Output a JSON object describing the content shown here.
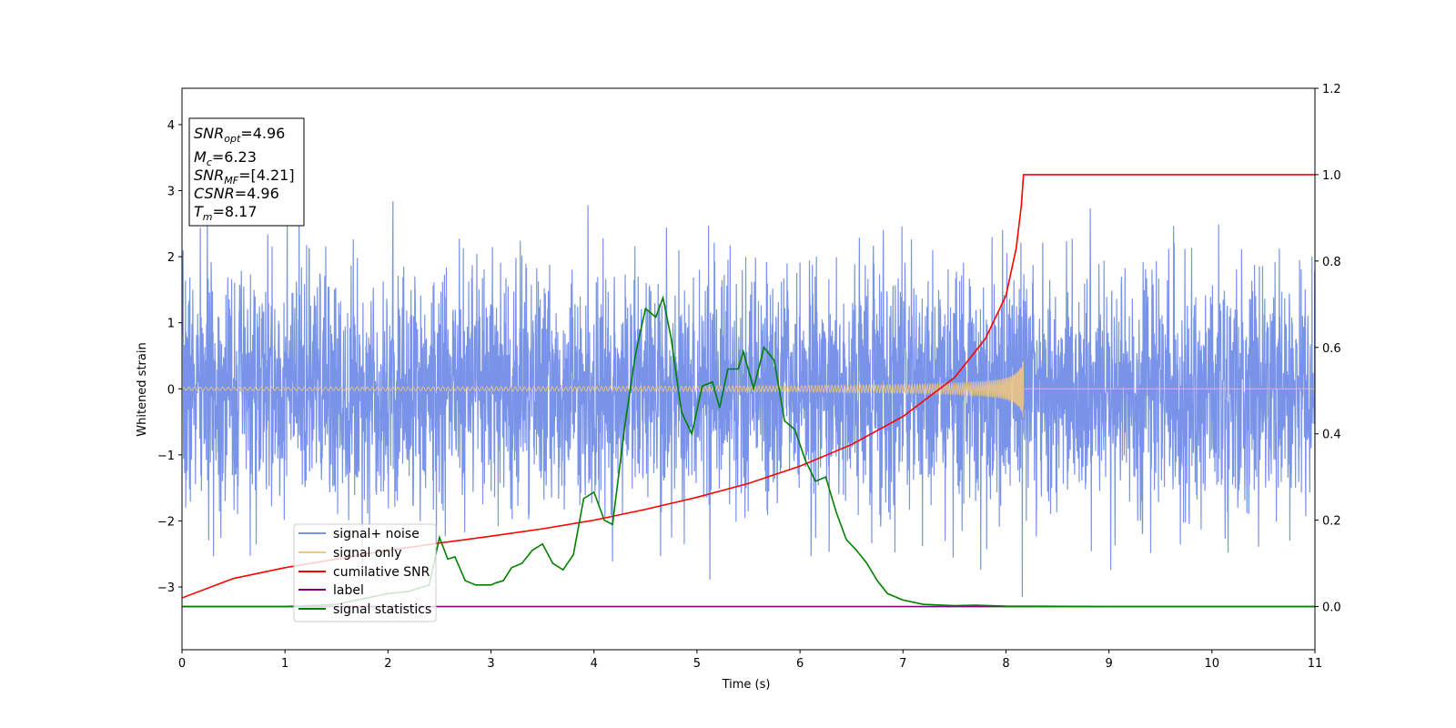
{
  "chart_data": {
    "type": "line",
    "xlabel": "Time (s)",
    "ylabel": "Whitened strain",
    "xlim": [
      0,
      11
    ],
    "ylim_left": [
      -3.95,
      4.55
    ],
    "ylim_right": [
      -0.1,
      1.2
    ],
    "x_ticks": [
      0,
      1,
      2,
      3,
      4,
      5,
      6,
      7,
      8,
      9,
      10,
      11
    ],
    "y_ticks_left": [
      -3,
      -2,
      -1,
      0,
      1,
      2,
      3,
      4
    ],
    "y_ticks_right": [
      0.0,
      0.2,
      0.4,
      0.6,
      0.8,
      1.0,
      1.2
    ],
    "legend_placement": "lower-left",
    "annotation_box": {
      "snr_opt": {
        "sym": "SNR",
        "sub": "opt",
        "value": "=4.96"
      },
      "mc": {
        "sym": "M",
        "sub": "c",
        "value": "=6.23"
      },
      "snr_mf": {
        "sym": "SNR",
        "sub": "MF",
        "value": "=[4.21]"
      },
      "csnr": {
        "sym": "CSNR",
        "sub": "",
        "value": "=4.96"
      },
      "tm": {
        "sym": "T",
        "sub": "m",
        "value": "=8.17"
      }
    },
    "series": [
      {
        "name": "signal+ noise",
        "color": "#7893e8",
        "axis": "left",
        "sigma": 0.9,
        "seed": 7
      },
      {
        "name": "signal only",
        "color": "#f5c77e",
        "axis": "left",
        "merger_time": 8.17,
        "peak_amplitude": 0.55
      },
      {
        "name": "cumilative SNR",
        "color": "#ff0000",
        "axis": "right",
        "points": [
          [
            0,
            0.02
          ],
          [
            0.5,
            0.065
          ],
          [
            1,
            0.09
          ],
          [
            1.5,
            0.11
          ],
          [
            2,
            0.13
          ],
          [
            2.5,
            0.147
          ],
          [
            3,
            0.163
          ],
          [
            3.5,
            0.18
          ],
          [
            4,
            0.2
          ],
          [
            4.5,
            0.225
          ],
          [
            5,
            0.253
          ],
          [
            5.5,
            0.285
          ],
          [
            6,
            0.325
          ],
          [
            6.5,
            0.375
          ],
          [
            7,
            0.44
          ],
          [
            7.5,
            0.53
          ],
          [
            7.8,
            0.62
          ],
          [
            8.0,
            0.72
          ],
          [
            8.1,
            0.83
          ],
          [
            8.15,
            0.93
          ],
          [
            8.17,
            1.0
          ],
          [
            11,
            1.0
          ]
        ]
      },
      {
        "name": "label",
        "color": "#800080",
        "axis": "right",
        "points": [
          [
            0,
            0.0
          ],
          [
            11,
            0.0
          ]
        ]
      },
      {
        "name": "signal statistics",
        "color": "#008000",
        "axis": "right",
        "points": [
          [
            0,
            0.0
          ],
          [
            1,
            0.0
          ],
          [
            1.5,
            0.005
          ],
          [
            2,
            0.03
          ],
          [
            2.2,
            0.035
          ],
          [
            2.4,
            0.05
          ],
          [
            2.5,
            0.16
          ],
          [
            2.58,
            0.11
          ],
          [
            2.65,
            0.115
          ],
          [
            2.75,
            0.06
          ],
          [
            2.85,
            0.05
          ],
          [
            3.0,
            0.05
          ],
          [
            3.05,
            0.055
          ],
          [
            3.12,
            0.06
          ],
          [
            3.2,
            0.09
          ],
          [
            3.3,
            0.1
          ],
          [
            3.4,
            0.13
          ],
          [
            3.5,
            0.145
          ],
          [
            3.6,
            0.1
          ],
          [
            3.7,
            0.085
          ],
          [
            3.8,
            0.12
          ],
          [
            3.9,
            0.25
          ],
          [
            4.0,
            0.265
          ],
          [
            4.1,
            0.2
          ],
          [
            4.18,
            0.19
          ],
          [
            4.3,
            0.42
          ],
          [
            4.4,
            0.58
          ],
          [
            4.5,
            0.69
          ],
          [
            4.6,
            0.67
          ],
          [
            4.67,
            0.715
          ],
          [
            4.75,
            0.62
          ],
          [
            4.85,
            0.45
          ],
          [
            4.95,
            0.4
          ],
          [
            5.05,
            0.51
          ],
          [
            5.15,
            0.52
          ],
          [
            5.22,
            0.46
          ],
          [
            5.3,
            0.55
          ],
          [
            5.4,
            0.55
          ],
          [
            5.45,
            0.59
          ],
          [
            5.55,
            0.505
          ],
          [
            5.65,
            0.6
          ],
          [
            5.75,
            0.57
          ],
          [
            5.85,
            0.43
          ],
          [
            5.95,
            0.41
          ],
          [
            6.05,
            0.34
          ],
          [
            6.15,
            0.29
          ],
          [
            6.25,
            0.3
          ],
          [
            6.35,
            0.22
          ],
          [
            6.45,
            0.155
          ],
          [
            6.55,
            0.13
          ],
          [
            6.65,
            0.1
          ],
          [
            6.75,
            0.06
          ],
          [
            6.85,
            0.03
          ],
          [
            7.0,
            0.015
          ],
          [
            7.2,
            0.005
          ],
          [
            7.5,
            0.002
          ],
          [
            7.7,
            0.003
          ],
          [
            8.0,
            0.001
          ],
          [
            9,
            0.0
          ],
          [
            11,
            0.0
          ]
        ]
      }
    ]
  }
}
